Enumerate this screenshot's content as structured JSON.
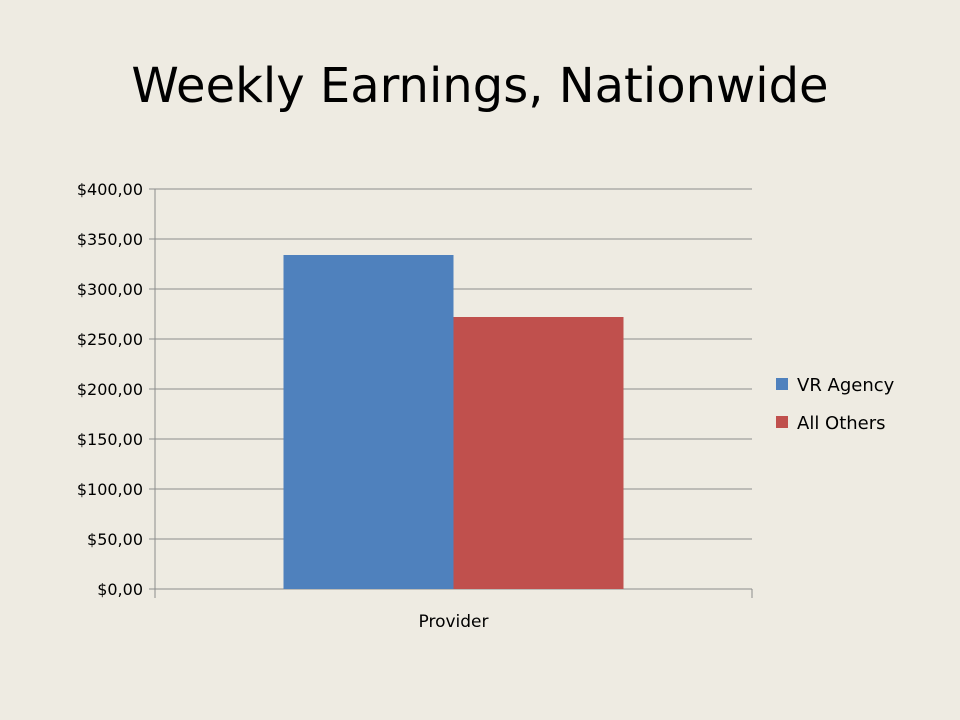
{
  "slide": {
    "title": "Weekly Earnings, Nationwide"
  },
  "chart_data": {
    "type": "bar",
    "categories": [
      "Provider"
    ],
    "series": [
      {
        "name": "VR Agency",
        "values": [
          334
        ],
        "color": "#4f81bd"
      },
      {
        "name": "All Others",
        "values": [
          272
        ],
        "color": "#c0504d"
      }
    ],
    "ylim": [
      0,
      400
    ],
    "yticks": [
      0,
      50,
      100,
      150,
      200,
      250,
      300,
      350,
      400
    ],
    "ytick_labels": [
      "$0,00",
      "$50,00",
      "$100,00",
      "$150,00",
      "$200,00",
      "$250,00",
      "$300,00",
      "$350,00",
      "$400,00"
    ],
    "grid": true,
    "legend": "right",
    "xlabel": "",
    "ylabel": ""
  }
}
